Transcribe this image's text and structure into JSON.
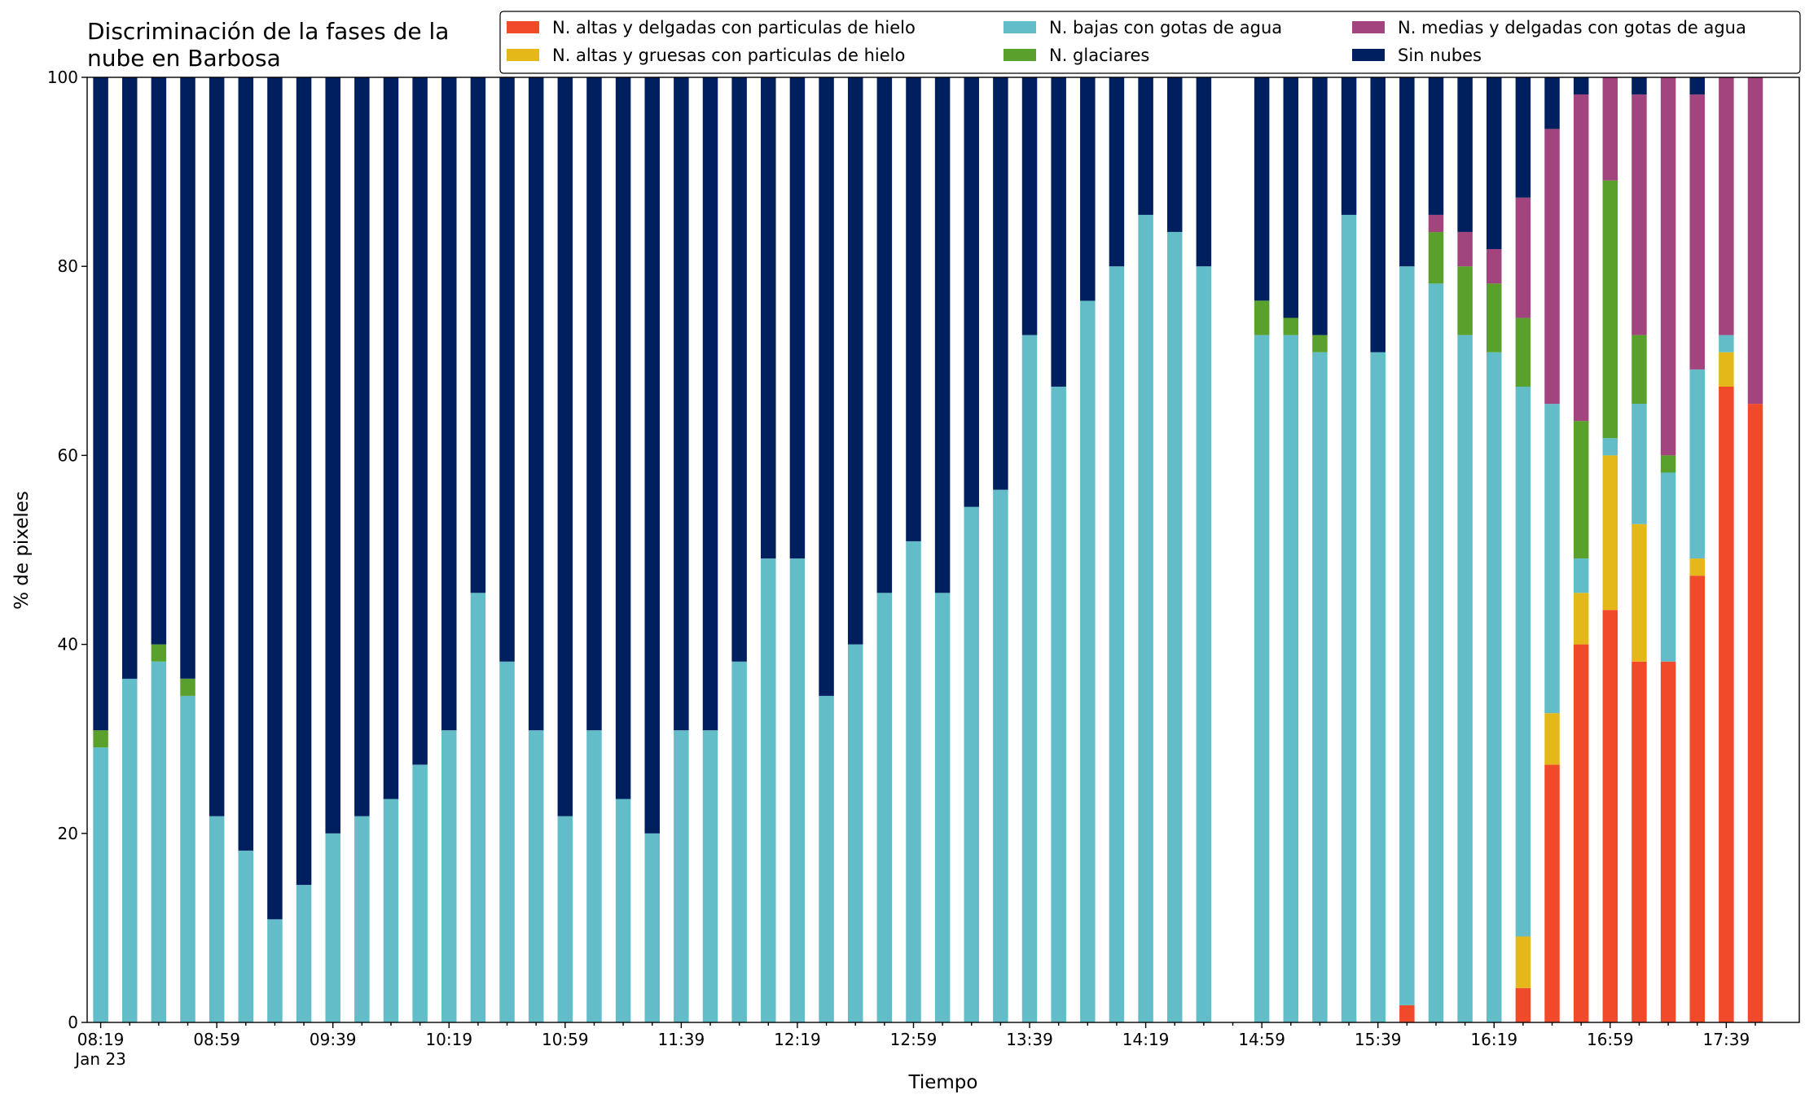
{
  "chart_data": {
    "type": "stacked_bar",
    "title": "Discriminación de la fases de la\nnube en Barbosa",
    "ylabel": "% de pixeles",
    "xlabel": "Tiempo",
    "x_sublabel": "Jan 23",
    "categories": [
      "08:19",
      null,
      null,
      null,
      "08:59",
      null,
      null,
      null,
      "09:39",
      null,
      null,
      null,
      "10:19",
      null,
      null,
      null,
      "10:59",
      null,
      null,
      null,
      "11:39",
      null,
      null,
      null,
      "12:19",
      null,
      null,
      null,
      "12:59",
      null,
      null,
      null,
      "13:39",
      null,
      null,
      null,
      "14:19",
      null,
      null,
      null,
      "14:59",
      null,
      null,
      null,
      "15:39",
      null,
      null,
      null,
      "16:19",
      null,
      null,
      null,
      "16:59",
      null,
      null,
      null,
      "17:39",
      null
    ],
    "ylim": [
      0,
      100
    ],
    "yticks": [
      0,
      20,
      40,
      60,
      80,
      100
    ],
    "grid": false,
    "legend": "top",
    "series": [
      {
        "name": "N. altas y delgadas con particulas de hielo",
        "color": "#f04a2a",
        "values": [
          0,
          0,
          0,
          0,
          0,
          0,
          0,
          0,
          0,
          0,
          0,
          0,
          0,
          0,
          0,
          0,
          0,
          0,
          0,
          0,
          0,
          0,
          0,
          0,
          0,
          0,
          0,
          0,
          0,
          0,
          0,
          0,
          0,
          0,
          0,
          0,
          0,
          0,
          0,
          null,
          0,
          0,
          0,
          0,
          0,
          1.82,
          0,
          0,
          0,
          3.64,
          27.27,
          40.0,
          43.64,
          38.18,
          38.18,
          47.27,
          67.27,
          65.45
        ]
      },
      {
        "name": "N. altas y gruesas con particulas de hielo",
        "color": "#e5b81a",
        "values": [
          0,
          0,
          0,
          0,
          0,
          0,
          0,
          0,
          0,
          0,
          0,
          0,
          0,
          0,
          0,
          0,
          0,
          0,
          0,
          0,
          0,
          0,
          0,
          0,
          0,
          0,
          0,
          0,
          0,
          0,
          0,
          0,
          0,
          0,
          0,
          0,
          0,
          0,
          0,
          null,
          0,
          0,
          0,
          0,
          0,
          0,
          0,
          0,
          0,
          5.45,
          5.45,
          5.45,
          16.36,
          14.55,
          0,
          1.82,
          3.64,
          0
        ]
      },
      {
        "name": "N. bajas con gotas de agua",
        "color": "#62bdc9",
        "values": [
          29.09,
          36.36,
          38.18,
          34.55,
          21.82,
          18.18,
          10.91,
          14.55,
          20.0,
          21.82,
          23.64,
          27.27,
          30.91,
          45.45,
          38.18,
          30.91,
          21.82,
          30.91,
          23.64,
          20.0,
          30.91,
          30.91,
          38.18,
          49.09,
          49.09,
          34.55,
          40.0,
          45.45,
          50.91,
          45.45,
          54.55,
          56.36,
          72.73,
          67.27,
          76.36,
          80.0,
          85.45,
          83.64,
          80.0,
          null,
          72.73,
          72.73,
          70.91,
          85.45,
          70.91,
          78.18,
          78.18,
          72.73,
          70.91,
          58.18,
          32.73,
          3.64,
          1.82,
          12.73,
          20.0,
          20.0,
          1.82,
          0
        ]
      },
      {
        "name": "N. glaciares",
        "color": "#5aa02c",
        "values": [
          1.82,
          0,
          1.82,
          1.82,
          0,
          0,
          0,
          0,
          0,
          0,
          0,
          0,
          0,
          0,
          0,
          0,
          0,
          0,
          0,
          0,
          0,
          0,
          0,
          0,
          0,
          0,
          0,
          0,
          0,
          0,
          0,
          0,
          0,
          0,
          0,
          0,
          0,
          0,
          0,
          null,
          3.64,
          1.82,
          1.82,
          0,
          0,
          0,
          5.45,
          7.27,
          7.27,
          7.27,
          0,
          14.55,
          27.27,
          7.27,
          1.82,
          0,
          0,
          0
        ]
      },
      {
        "name": "N. medias y delgadas con gotas de agua",
        "color": "#a2457e",
        "values": [
          0,
          0,
          0,
          0,
          0,
          0,
          0,
          0,
          0,
          0,
          0,
          0,
          0,
          0,
          0,
          0,
          0,
          0,
          0,
          0,
          0,
          0,
          0,
          0,
          0,
          0,
          0,
          0,
          0,
          0,
          0,
          0,
          0,
          0,
          0,
          0,
          0,
          0,
          0,
          null,
          0,
          0,
          0,
          0,
          0,
          0,
          1.82,
          3.64,
          3.64,
          12.73,
          29.09,
          34.55,
          10.91,
          25.45,
          40.0,
          29.09,
          27.27,
          34.55
        ]
      },
      {
        "name": "Sin nubes",
        "color": "#001f5f",
        "values": [
          69.09,
          63.64,
          60.0,
          63.64,
          78.18,
          81.82,
          89.09,
          85.45,
          80.0,
          78.18,
          76.36,
          72.73,
          69.09,
          54.55,
          61.82,
          69.09,
          78.18,
          69.09,
          76.36,
          80.0,
          69.09,
          69.09,
          61.82,
          50.91,
          50.91,
          65.45,
          60.0,
          54.55,
          49.09,
          54.55,
          45.45,
          43.64,
          27.27,
          32.73,
          23.64,
          20.0,
          14.55,
          16.36,
          20.0,
          null,
          23.64,
          25.45,
          27.27,
          14.55,
          29.09,
          20.0,
          14.55,
          16.36,
          18.18,
          12.73,
          5.45,
          1.82,
          0,
          1.82,
          0,
          1.82,
          0,
          0
        ]
      }
    ]
  }
}
